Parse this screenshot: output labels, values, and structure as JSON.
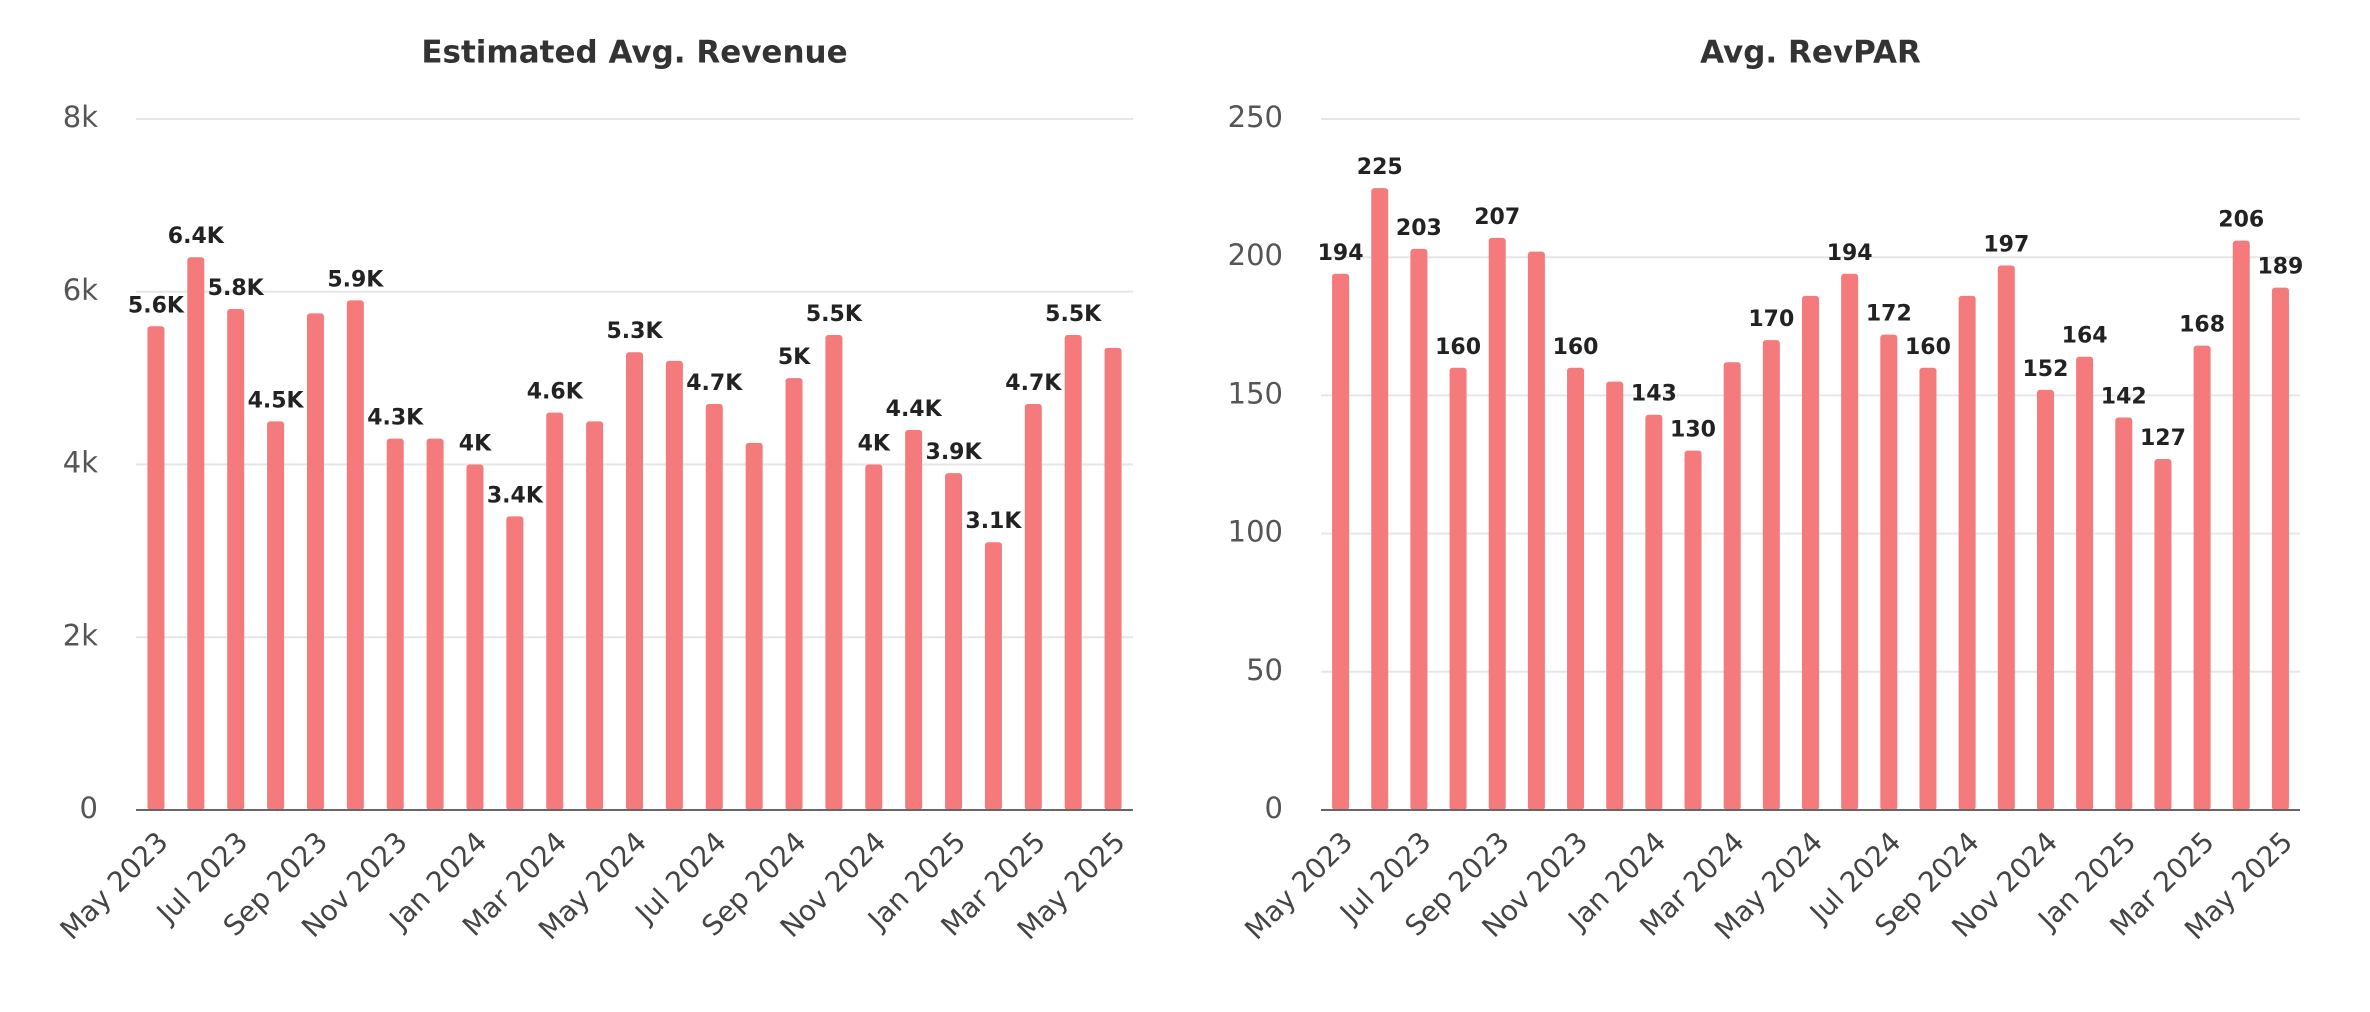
{
  "chart_data": [
    {
      "type": "bar",
      "title": "Estimated Avg. Revenue",
      "color": "#f47a7c",
      "grid": true,
      "categories": [
        "May 2023",
        null,
        "Jul 2023",
        null,
        "Sep 2023",
        null,
        "Nov 2023",
        null,
        "Jan 2024",
        null,
        "Mar 2024",
        null,
        "May 2024",
        null,
        "Jul 2024",
        null,
        "Sep 2024",
        null,
        "Nov 2024",
        null,
        "Jan 2025",
        null,
        "Mar 2025",
        null,
        "May 2025"
      ],
      "values": [
        5600,
        6400,
        5800,
        4500,
        5750,
        5900,
        4300,
        4300,
        4000,
        3400,
        4600,
        4500,
        5300,
        5200,
        4700,
        4250,
        5000,
        5500,
        4000,
        4400,
        3900,
        3100,
        4700,
        5500,
        5350
      ],
      "value_labels": [
        "5.6K",
        "6.4K",
        "5.8K",
        "4.5K",
        null,
        "5.9K",
        "4.3K",
        null,
        "4K",
        "3.4K",
        "4.6K",
        null,
        "5.3K",
        null,
        "4.7K",
        null,
        "5K",
        "5.5K",
        "4K",
        "4.4K",
        "3.9K",
        "3.1K",
        "4.7K",
        "5.5K",
        null
      ],
      "ylim": [
        0,
        8000
      ],
      "yticks": [
        0,
        {
          "value": 2000,
          "label": "2k"
        },
        {
          "value": 4000,
          "label": "4k"
        },
        {
          "value": 6000,
          "label": "6k"
        },
        {
          "value": 8000,
          "label": "8k"
        }
      ]
    },
    {
      "type": "bar",
      "title": "Avg. RevPAR",
      "color": "#f47a7c",
      "grid": true,
      "categories": [
        "May 2023",
        null,
        "Jul 2023",
        null,
        "Sep 2023",
        null,
        "Nov 2023",
        null,
        "Jan 2024",
        null,
        "Mar 2024",
        null,
        "May 2024",
        null,
        "Jul 2024",
        null,
        "Sep 2024",
        null,
        "Nov 2024",
        null,
        "Jan 2025",
        null,
        "Mar 2025",
        null,
        "May 2025"
      ],
      "values": [
        194,
        225,
        203,
        160,
        207,
        202,
        160,
        155,
        143,
        130,
        162,
        170,
        186,
        194,
        172,
        160,
        186,
        197,
        152,
        164,
        142,
        127,
        168,
        206,
        189
      ],
      "value_labels": [
        "194",
        "225",
        "203",
        "160",
        "207",
        null,
        "160",
        null,
        "143",
        "130",
        null,
        "170",
        null,
        "194",
        "172",
        "160",
        null,
        "197",
        "152",
        "164",
        "142",
        "127",
        "168",
        "206",
        "189"
      ],
      "ylim": [
        0,
        250
      ],
      "yticks": [
        0,
        50,
        100,
        150,
        200,
        250
      ]
    }
  ]
}
